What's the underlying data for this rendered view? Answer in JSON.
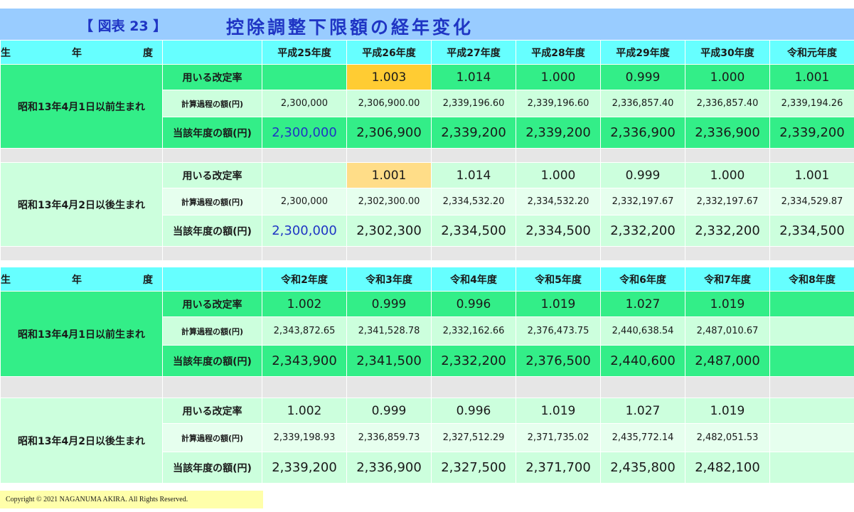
{
  "figure_label": "【 図表 23 】",
  "title": "控除調整下限額の経年変化",
  "header_era_label": "生　年　度",
  "row_labels": {
    "rate": "用いる改定率",
    "calc": "計算過程の額(円)",
    "amount": "当該年度の額(円)"
  },
  "table1": {
    "years": [
      "平成25年度",
      "平成26年度",
      "平成27年度",
      "平成28年度",
      "平成29年度",
      "平成30年度",
      "令和元年度"
    ],
    "group_a": {
      "label": "昭和13年4月1日以前生まれ",
      "rates": [
        "",
        "1.003",
        "1.014",
        "1.000",
        "0.999",
        "1.000",
        "1.001"
      ],
      "calcs": [
        "2,300,000",
        "2,306,900.00",
        "2,339,196.60",
        "2,339,196.60",
        "2,336,857.40",
        "2,336,857.40",
        "2,339,194.26"
      ],
      "amounts": [
        "2,300,000",
        "2,306,900",
        "2,339,200",
        "2,339,200",
        "2,336,900",
        "2,336,900",
        "2,339,200"
      ]
    },
    "group_b": {
      "label": "昭和13年4月2日以後生まれ",
      "rates": [
        "",
        "1.001",
        "1.014",
        "1.000",
        "0.999",
        "1.000",
        "1.001"
      ],
      "calcs": [
        "2,300,000",
        "2,302,300.00",
        "2,334,532.20",
        "2,334,532.20",
        "2,332,197.67",
        "2,332,197.67",
        "2,334,529.87"
      ],
      "amounts": [
        "2,300,000",
        "2,302,300",
        "2,334,500",
        "2,334,500",
        "2,332,200",
        "2,332,200",
        "2,334,500"
      ]
    }
  },
  "table2": {
    "years": [
      "令和2年度",
      "令和3年度",
      "令和4年度",
      "令和5年度",
      "令和6年度",
      "令和7年度",
      "令和8年度"
    ],
    "group_a": {
      "label": "昭和13年4月1日以前生まれ",
      "rates": [
        "1.002",
        "0.999",
        "0.996",
        "1.019",
        "1.027",
        "1.019",
        ""
      ],
      "calcs": [
        "2,343,872.65",
        "2,341,528.78",
        "2,332,162.66",
        "2,376,473.75",
        "2,440,638.54",
        "2,487,010.67",
        ""
      ],
      "amounts": [
        "2,343,900",
        "2,341,500",
        "2,332,200",
        "2,376,500",
        "2,440,600",
        "2,487,000",
        ""
      ]
    },
    "group_b": {
      "label": "昭和13年4月2日以後生まれ",
      "rates": [
        "1.002",
        "0.999",
        "0.996",
        "1.019",
        "1.027",
        "1.019",
        ""
      ],
      "calcs": [
        "2,339,198.93",
        "2,336,859.73",
        "2,327,512.29",
        "2,371,735.02",
        "2,435,772.14",
        "2,482,051.53",
        ""
      ],
      "amounts": [
        "2,339,200",
        "2,336,900",
        "2,327,500",
        "2,371,700",
        "2,435,800",
        "2,482,100",
        ""
      ]
    }
  },
  "colors": {
    "title_bar": "#99ccff",
    "header": "#66ffff",
    "group_a": "#33ee88",
    "group_b": "#ccffdd",
    "highlight_orange": "#ffcc33",
    "highlight_yellow": "#ffdd88",
    "title_text": "#1f35c4"
  },
  "copyright": "Copyright © 2021 NAGANUMA AKIRA. All Rights Reserved."
}
